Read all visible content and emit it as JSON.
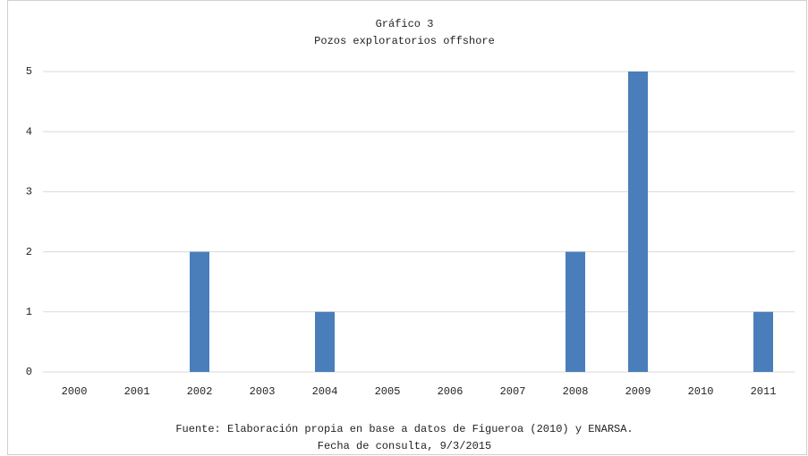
{
  "chart_data": {
    "type": "bar",
    "title": "Gráfico 3",
    "subtitle": "Pozos exploratorios offshore",
    "categories": [
      "2000",
      "2001",
      "2002",
      "2003",
      "2004",
      "2005",
      "2006",
      "2007",
      "2008",
      "2009",
      "2010",
      "2011"
    ],
    "values": [
      0,
      0,
      2,
      0,
      1,
      0,
      0,
      0,
      2,
      5,
      0,
      1
    ],
    "color": "#4a7ebb",
    "ylim": [
      0,
      5
    ],
    "yticks": [
      0,
      1,
      2,
      3,
      4,
      5
    ],
    "grid": true,
    "notes": [
      "Fuente: Elaboración propia en base a datos de Figueroa (2010) y ENARSA.",
      "Fecha de consulta, 9/3/2015"
    ]
  }
}
